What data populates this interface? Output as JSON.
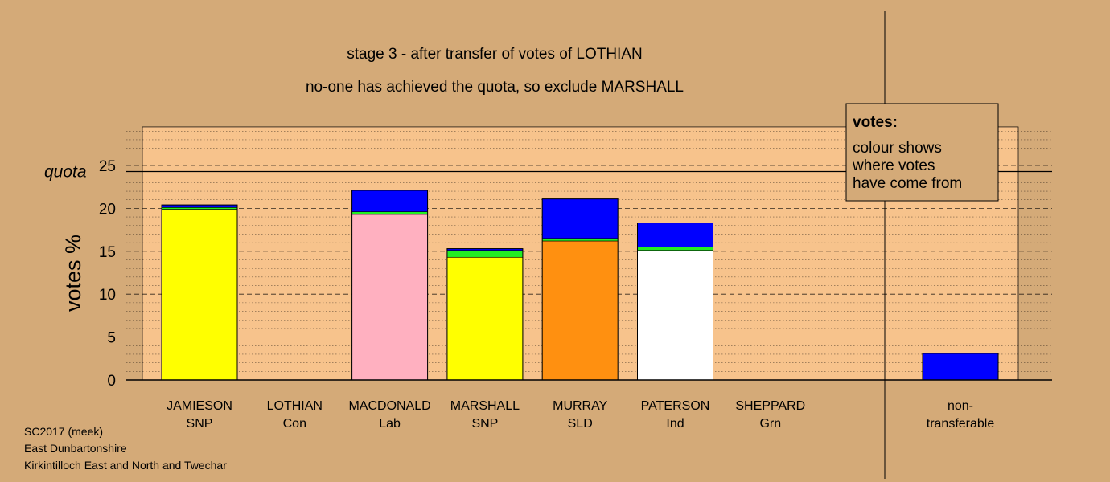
{
  "chart_data": {
    "type": "bar",
    "title": "stage 3 - after transfer of votes of LOTHIAN",
    "subtitle": "no-one has achieved the quota, so exclude MARSHALL",
    "ylabel": "votes %",
    "ylim": [
      0,
      29.5
    ],
    "yticks": [
      "0",
      "5",
      "10",
      "15",
      "20",
      "25"
    ],
    "quota": 24.3,
    "quota_label": "quota",
    "categories": [
      {
        "name": "JAMIESON",
        "party": "SNP"
      },
      {
        "name": "LOTHIAN",
        "party": "Con"
      },
      {
        "name": "MACDONALD",
        "party": "Lab"
      },
      {
        "name": "MARSHALL",
        "party": "SNP"
      },
      {
        "name": "MURRAY",
        "party": "SLD"
      },
      {
        "name": "PATERSON",
        "party": "Ind"
      },
      {
        "name": "SHEPPARD",
        "party": "Grn"
      }
    ],
    "bars": [
      {
        "segments": [
          {
            "value": 19.9,
            "color": "#ffff00"
          },
          {
            "value": 0.2,
            "color": "#22ee22"
          },
          {
            "value": 0.3,
            "color": "#0000ff"
          }
        ]
      },
      {
        "segments": []
      },
      {
        "segments": [
          {
            "value": 19.3,
            "color": "#ffb0c0"
          },
          {
            "value": 0.3,
            "color": "#22ee22"
          },
          {
            "value": 2.5,
            "color": "#0000ff"
          }
        ]
      },
      {
        "segments": [
          {
            "value": 14.3,
            "color": "#ffff00"
          },
          {
            "value": 0.8,
            "color": "#22ee22"
          },
          {
            "value": 0.2,
            "color": "#0000ff"
          }
        ]
      },
      {
        "segments": [
          {
            "value": 16.2,
            "color": "#ff9010"
          },
          {
            "value": 0.3,
            "color": "#22ee22"
          },
          {
            "value": 4.6,
            "color": "#0000ff"
          }
        ]
      },
      {
        "segments": [
          {
            "value": 15.1,
            "color": "#ffffff"
          },
          {
            "value": 0.4,
            "color": "#22ee22"
          },
          {
            "value": 2.8,
            "color": "#0000ff"
          }
        ]
      },
      {
        "segments": []
      }
    ],
    "nontransferable": {
      "label_line1": "non-",
      "label_line2": "transferable",
      "value": 3.1,
      "color": "#0000ff"
    },
    "grid": true,
    "legend": {
      "title": "votes:",
      "lines": [
        "colour shows",
        "where votes",
        "have come from"
      ],
      "placement": "top-right"
    },
    "colors": {
      "background": "#d4aa78",
      "plot_area": "#f7c38c",
      "nontransferable_area": "#d4aa78",
      "outline": "#000000"
    }
  },
  "footer": {
    "line1": "SC2017 (meek)",
    "line2": "East Dunbartonshire",
    "line3": "Kirkintilloch East and North and Twechar"
  }
}
